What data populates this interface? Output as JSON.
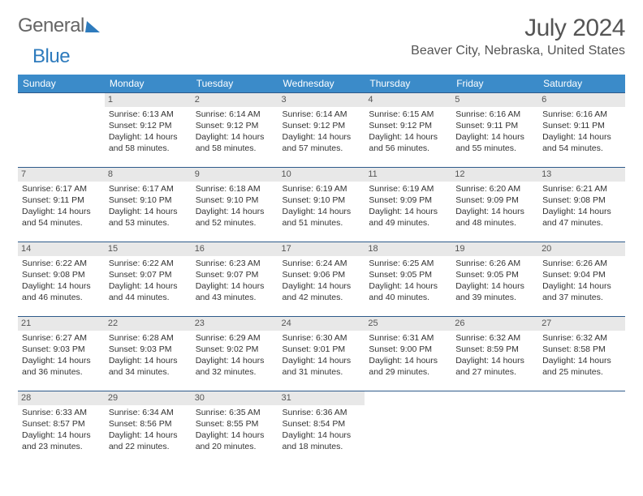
{
  "logo": {
    "part1": "General",
    "part2": "Blue"
  },
  "title": "July 2024",
  "location": "Beaver City, Nebraska, United States",
  "weekdays": [
    "Sunday",
    "Monday",
    "Tuesday",
    "Wednesday",
    "Thursday",
    "Friday",
    "Saturday"
  ],
  "header_bg": "#3b8bc9",
  "header_fg": "#ffffff",
  "row_border": "#2e5a8a",
  "daynum_bg": "#e8e8e8",
  "weeks": [
    [
      null,
      {
        "n": "1",
        "sr": "6:13 AM",
        "ss": "9:12 PM",
        "dl": "14 hours and 58 minutes."
      },
      {
        "n": "2",
        "sr": "6:14 AM",
        "ss": "9:12 PM",
        "dl": "14 hours and 58 minutes."
      },
      {
        "n": "3",
        "sr": "6:14 AM",
        "ss": "9:12 PM",
        "dl": "14 hours and 57 minutes."
      },
      {
        "n": "4",
        "sr": "6:15 AM",
        "ss": "9:12 PM",
        "dl": "14 hours and 56 minutes."
      },
      {
        "n": "5",
        "sr": "6:16 AM",
        "ss": "9:11 PM",
        "dl": "14 hours and 55 minutes."
      },
      {
        "n": "6",
        "sr": "6:16 AM",
        "ss": "9:11 PM",
        "dl": "14 hours and 54 minutes."
      }
    ],
    [
      {
        "n": "7",
        "sr": "6:17 AM",
        "ss": "9:11 PM",
        "dl": "14 hours and 54 minutes."
      },
      {
        "n": "8",
        "sr": "6:17 AM",
        "ss": "9:10 PM",
        "dl": "14 hours and 53 minutes."
      },
      {
        "n": "9",
        "sr": "6:18 AM",
        "ss": "9:10 PM",
        "dl": "14 hours and 52 minutes."
      },
      {
        "n": "10",
        "sr": "6:19 AM",
        "ss": "9:10 PM",
        "dl": "14 hours and 51 minutes."
      },
      {
        "n": "11",
        "sr": "6:19 AM",
        "ss": "9:09 PM",
        "dl": "14 hours and 49 minutes."
      },
      {
        "n": "12",
        "sr": "6:20 AM",
        "ss": "9:09 PM",
        "dl": "14 hours and 48 minutes."
      },
      {
        "n": "13",
        "sr": "6:21 AM",
        "ss": "9:08 PM",
        "dl": "14 hours and 47 minutes."
      }
    ],
    [
      {
        "n": "14",
        "sr": "6:22 AM",
        "ss": "9:08 PM",
        "dl": "14 hours and 46 minutes."
      },
      {
        "n": "15",
        "sr": "6:22 AM",
        "ss": "9:07 PM",
        "dl": "14 hours and 44 minutes."
      },
      {
        "n": "16",
        "sr": "6:23 AM",
        "ss": "9:07 PM",
        "dl": "14 hours and 43 minutes."
      },
      {
        "n": "17",
        "sr": "6:24 AM",
        "ss": "9:06 PM",
        "dl": "14 hours and 42 minutes."
      },
      {
        "n": "18",
        "sr": "6:25 AM",
        "ss": "9:05 PM",
        "dl": "14 hours and 40 minutes."
      },
      {
        "n": "19",
        "sr": "6:26 AM",
        "ss": "9:05 PM",
        "dl": "14 hours and 39 minutes."
      },
      {
        "n": "20",
        "sr": "6:26 AM",
        "ss": "9:04 PM",
        "dl": "14 hours and 37 minutes."
      }
    ],
    [
      {
        "n": "21",
        "sr": "6:27 AM",
        "ss": "9:03 PM",
        "dl": "14 hours and 36 minutes."
      },
      {
        "n": "22",
        "sr": "6:28 AM",
        "ss": "9:03 PM",
        "dl": "14 hours and 34 minutes."
      },
      {
        "n": "23",
        "sr": "6:29 AM",
        "ss": "9:02 PM",
        "dl": "14 hours and 32 minutes."
      },
      {
        "n": "24",
        "sr": "6:30 AM",
        "ss": "9:01 PM",
        "dl": "14 hours and 31 minutes."
      },
      {
        "n": "25",
        "sr": "6:31 AM",
        "ss": "9:00 PM",
        "dl": "14 hours and 29 minutes."
      },
      {
        "n": "26",
        "sr": "6:32 AM",
        "ss": "8:59 PM",
        "dl": "14 hours and 27 minutes."
      },
      {
        "n": "27",
        "sr": "6:32 AM",
        "ss": "8:58 PM",
        "dl": "14 hours and 25 minutes."
      }
    ],
    [
      {
        "n": "28",
        "sr": "6:33 AM",
        "ss": "8:57 PM",
        "dl": "14 hours and 23 minutes."
      },
      {
        "n": "29",
        "sr": "6:34 AM",
        "ss": "8:56 PM",
        "dl": "14 hours and 22 minutes."
      },
      {
        "n": "30",
        "sr": "6:35 AM",
        "ss": "8:55 PM",
        "dl": "14 hours and 20 minutes."
      },
      {
        "n": "31",
        "sr": "6:36 AM",
        "ss": "8:54 PM",
        "dl": "14 hours and 18 minutes."
      },
      null,
      null,
      null
    ]
  ],
  "labels": {
    "sunrise": "Sunrise:",
    "sunset": "Sunset:",
    "daylight": "Daylight:"
  }
}
